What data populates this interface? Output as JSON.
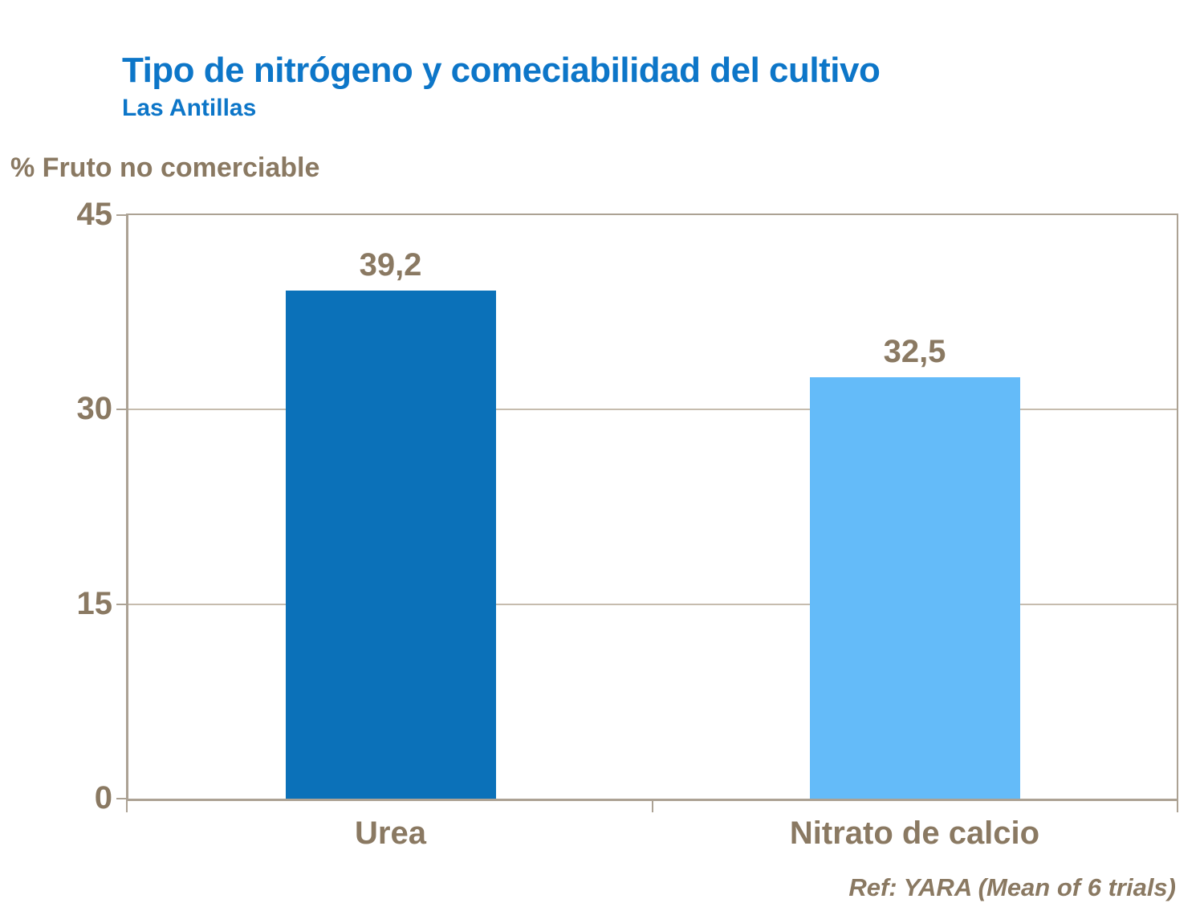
{
  "header": {
    "title": "Tipo de nitrógeno y comeciabilidad del cultivo",
    "subtitle": "Las Antillas",
    "title_color": "#0D76C8"
  },
  "footer": {
    "ref": "Ref: YARA (Mean of 6 trials)"
  },
  "chart_data": {
    "type": "bar",
    "title": "Tipo de nitrógeno y comeciabilidad del cultivo",
    "subtitle": "Las Antillas",
    "ylabel": "% Fruto no comerciable",
    "xlabel": "",
    "categories": [
      "Urea",
      "Nitrato de calcio"
    ],
    "values": [
      39.2,
      32.5
    ],
    "value_labels": [
      "39,2",
      "32,5"
    ],
    "series": [
      {
        "name": "% Fruto no comerciable",
        "values": [
          39.2,
          32.5
        ]
      }
    ],
    "bar_colors": [
      "#0B71B9",
      "#64BBF9"
    ],
    "ylim": [
      0,
      45
    ],
    "yticks": [
      0,
      15,
      30,
      45
    ],
    "grid": "horizontal gridlines at 15 and 30",
    "legend": "none",
    "annotation": "Ref: YARA (Mean of 6 trials)",
    "text_color": "#8A7962",
    "axis_color": "#ACA294",
    "gridline_color": "#C6BCAE",
    "plot_background": "#FFFFFF"
  }
}
